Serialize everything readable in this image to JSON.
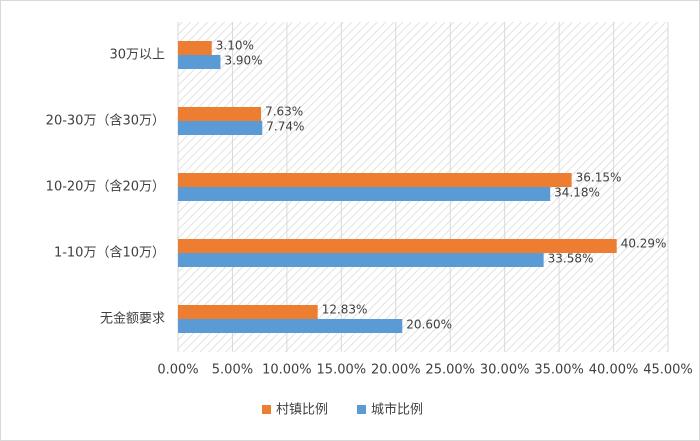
{
  "chart_data": {
    "type": "hbar",
    "categories": [
      "30万以上",
      "20-30万（含30万）",
      "10-20万（含20万）",
      "1-10万（含10万）",
      "无金额要求"
    ],
    "series": [
      {
        "name": "村镇比例",
        "color": "#ED7D31",
        "values": [
          3.1,
          7.63,
          36.15,
          40.29,
          12.83
        ],
        "value_labels": [
          "3.10%",
          "7.63%",
          "36.15%",
          "40.29%",
          "12.83%"
        ]
      },
      {
        "name": "城市比例",
        "color": "#5B9BD5",
        "values": [
          3.9,
          7.74,
          34.18,
          33.58,
          20.6
        ],
        "value_labels": [
          "3.90%",
          "7.74%",
          "34.18%",
          "33.58%",
          "20.60%"
        ]
      }
    ],
    "xlim": [
      0,
      45
    ],
    "xticks": [
      {
        "value": 0,
        "label": "0.00%"
      },
      {
        "value": 5,
        "label": "5.00%"
      },
      {
        "value": 10,
        "label": "10.00%"
      },
      {
        "value": 15,
        "label": "15.00%"
      },
      {
        "value": 20,
        "label": "20.00%"
      },
      {
        "value": 25,
        "label": "25.00%"
      },
      {
        "value": 30,
        "label": "30.00%"
      },
      {
        "value": 35,
        "label": "35.00%"
      },
      {
        "value": 40,
        "label": "40.00%"
      },
      {
        "value": 45,
        "label": "45.00%"
      }
    ],
    "grid": true,
    "legend": "bottom"
  }
}
